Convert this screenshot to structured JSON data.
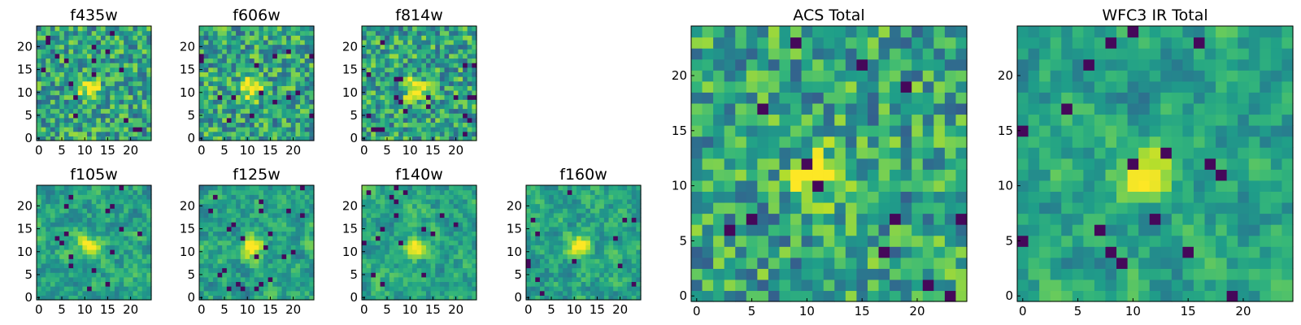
{
  "chart_data": [
    {
      "type": "heatmap",
      "title": "f435w",
      "colormap": "viridis",
      "grid_size": 25,
      "xlim": [
        0,
        24
      ],
      "ylim": [
        0,
        24
      ],
      "xticks": [
        0,
        5,
        10,
        15,
        20
      ],
      "yticks": [
        0,
        5,
        10,
        15,
        20
      ],
      "source_peak": [
        11,
        11
      ],
      "seed": 11
    },
    {
      "type": "heatmap",
      "title": "f606w",
      "colormap": "viridis",
      "grid_size": 25,
      "xlim": [
        0,
        24
      ],
      "ylim": [
        0,
        24
      ],
      "xticks": [
        0,
        5,
        10,
        15,
        20
      ],
      "yticks": [
        0,
        5,
        10,
        15,
        20
      ],
      "source_peak": [
        11,
        11
      ],
      "seed": 23
    },
    {
      "type": "heatmap",
      "title": "f814w",
      "colormap": "viridis",
      "grid_size": 25,
      "xlim": [
        0,
        24
      ],
      "ylim": [
        0,
        24
      ],
      "xticks": [
        0,
        5,
        10,
        15,
        20
      ],
      "yticks": [
        0,
        5,
        10,
        15,
        20
      ],
      "source_peak": [
        11,
        11
      ],
      "seed": 37
    },
    {
      "type": "heatmap",
      "title": "f105w",
      "colormap": "viridis",
      "grid_size": 25,
      "xlim": [
        0,
        24
      ],
      "ylim": [
        0,
        24
      ],
      "xticks": [
        0,
        5,
        10,
        15,
        20
      ],
      "yticks": [
        0,
        5,
        10,
        15,
        20
      ],
      "source_peak": [
        11,
        11
      ],
      "seed": 41
    },
    {
      "type": "heatmap",
      "title": "f125w",
      "colormap": "viridis",
      "grid_size": 25,
      "xlim": [
        0,
        24
      ],
      "ylim": [
        0,
        24
      ],
      "xticks": [
        0,
        5,
        10,
        15,
        20
      ],
      "yticks": [
        0,
        5,
        10,
        15,
        20
      ],
      "source_peak": [
        11,
        11
      ],
      "seed": 53
    },
    {
      "type": "heatmap",
      "title": "f140w",
      "colormap": "viridis",
      "grid_size": 25,
      "xlim": [
        0,
        24
      ],
      "ylim": [
        0,
        24
      ],
      "xticks": [
        0,
        5,
        10,
        15,
        20
      ],
      "yticks": [
        0,
        5,
        10,
        15,
        20
      ],
      "source_peak": [
        11,
        11
      ],
      "seed": 67
    },
    {
      "type": "heatmap",
      "title": "f160w",
      "colormap": "viridis",
      "grid_size": 25,
      "xlim": [
        0,
        24
      ],
      "ylim": [
        0,
        24
      ],
      "xticks": [
        0,
        5,
        10,
        15,
        20
      ],
      "yticks": [
        0,
        5,
        10,
        15,
        20
      ],
      "source_peak": [
        11,
        11
      ],
      "seed": 79
    },
    {
      "type": "heatmap",
      "title": "ACS Total",
      "colormap": "viridis",
      "grid_size": 25,
      "xlim": [
        0,
        24
      ],
      "ylim": [
        0,
        24
      ],
      "xticks": [
        0,
        5,
        10,
        15,
        20
      ],
      "yticks": [
        0,
        5,
        10,
        15,
        20
      ],
      "source_peak": [
        11,
        11
      ],
      "seed": 83
    },
    {
      "type": "heatmap",
      "title": "WFC3 IR Total",
      "colormap": "viridis",
      "grid_size": 25,
      "xlim": [
        0,
        24
      ],
      "ylim": [
        0,
        24
      ],
      "xticks": [
        0,
        5,
        10,
        15,
        20
      ],
      "yticks": [
        0,
        5,
        10,
        15,
        20
      ],
      "source_peak": [
        11,
        11
      ],
      "seed": 97
    }
  ]
}
